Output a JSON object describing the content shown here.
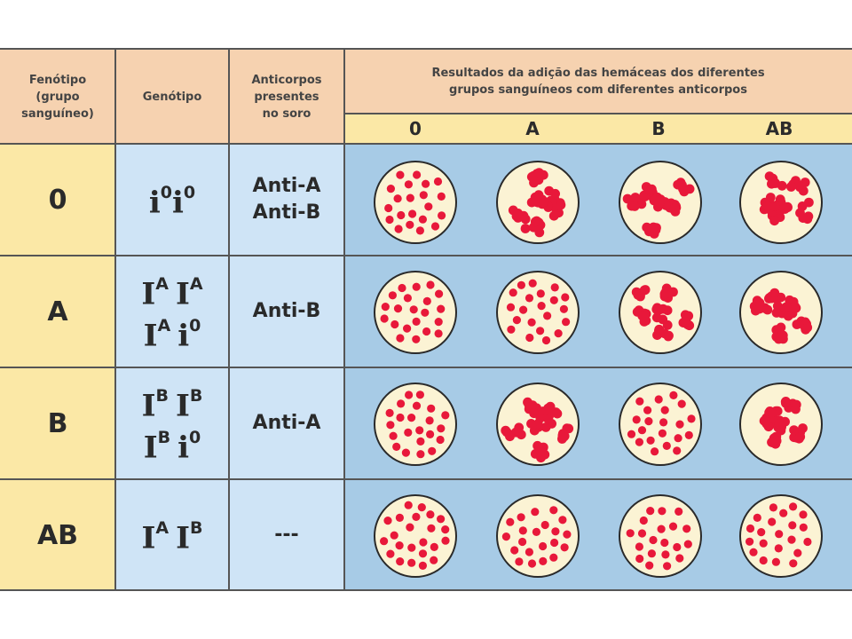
{
  "header": {
    "phenotype": "Fenótipo\n(grupo\nsanguíneo)",
    "genotype": "Genótipo",
    "antibodies": "Anticorpos\npresentes\nno soro",
    "results": "Resultados da adição das hemáceas dos diferentes\ngrupos sanguíneos com diferentes anticorpos",
    "result_columns": [
      "0",
      "A",
      "B",
      "AB"
    ]
  },
  "rows": [
    {
      "phenotype": "0",
      "genotype_lines": [
        [
          {
            "base": "i",
            "sup": "0"
          },
          {
            "base": "i",
            "sup": "0"
          }
        ]
      ],
      "antibodies": "Anti-A\nAnti-B",
      "results": [
        "dispersed",
        "agglutinated",
        "agglutinated",
        "agglutinated"
      ]
    },
    {
      "phenotype": "A",
      "genotype_lines": [
        [
          {
            "base": "I",
            "sup": "A"
          },
          {
            "base": "I",
            "sup": "A"
          }
        ],
        [
          {
            "base": "I",
            "sup": "A"
          },
          {
            "base": "i",
            "sup": "0"
          }
        ]
      ],
      "antibodies": "Anti-B",
      "results": [
        "dispersed",
        "dispersed",
        "agglutinated",
        "agglutinated"
      ]
    },
    {
      "phenotype": "B",
      "genotype_lines": [
        [
          {
            "base": "I",
            "sup": "B"
          },
          {
            "base": "I",
            "sup": "B"
          }
        ],
        [
          {
            "base": "I",
            "sup": "B"
          },
          {
            "base": "i",
            "sup": "0"
          }
        ]
      ],
      "antibodies": "Anti-A",
      "results": [
        "dispersed",
        "agglutinated",
        "dispersed",
        "agglutinated"
      ]
    },
    {
      "phenotype": "AB",
      "genotype_lines": [
        [
          {
            "base": "I",
            "sup": "A"
          },
          {
            "base": "I",
            "sup": "B"
          }
        ]
      ],
      "antibodies": "---",
      "results": [
        "dispersed",
        "dispersed",
        "dispersed",
        "dispersed"
      ]
    }
  ],
  "colors": {
    "header_bg": "#f6d2b0",
    "subheader_bg": "#fbe8a6",
    "phenotype_bg": "#fbe8a6",
    "light_blue": "#cfe4f6",
    "results_bg": "#a7cbe6",
    "dish_fill": "#fbf3d4",
    "cell_red": "#e8183a"
  }
}
